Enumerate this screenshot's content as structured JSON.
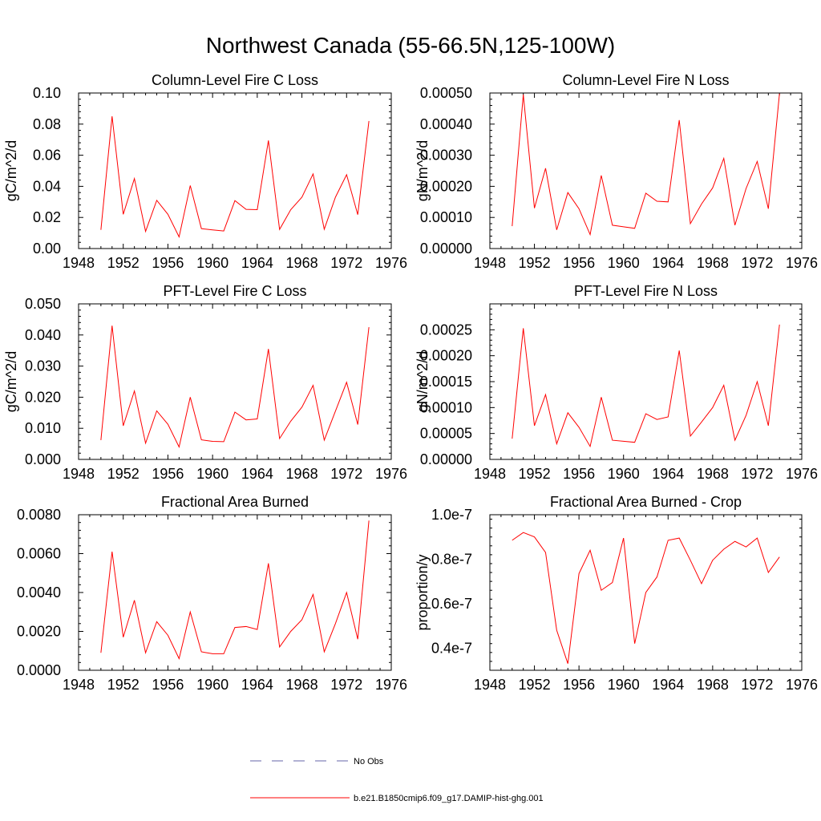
{
  "title": "Northwest Canada (55-66.5N,125-100W)",
  "chart_data": [
    {
      "type": "line",
      "title": "Column-Level Fire C Loss",
      "ylabel": "gC/m^2/d",
      "xlim": [
        1948,
        1976
      ],
      "ylim": [
        0,
        0.1
      ],
      "xticks": [
        1948,
        1952,
        1956,
        1960,
        1964,
        1968,
        1972,
        1976
      ],
      "yticks": [
        0,
        0.02,
        0.04,
        0.06,
        0.08,
        0.1
      ],
      "yticklabels": [
        "0.00",
        "0.02",
        "0.04",
        "0.06",
        "0.08",
        "0.10"
      ],
      "x": [
        1950,
        1951,
        1952,
        1953,
        1954,
        1955,
        1956,
        1957,
        1958,
        1959,
        1960,
        1961,
        1962,
        1963,
        1964,
        1965,
        1966,
        1967,
        1968,
        1969,
        1970,
        1971,
        1972,
        1973,
        1974
      ],
      "series": [
        {
          "name": "b.e21.B1850cmip6.f09_g17.DAMIP-hist-ghg.001",
          "values": [
            0.012,
            0.085,
            0.022,
            0.045,
            0.011,
            0.031,
            0.022,
            0.0075,
            0.0405,
            0.0128,
            0.012,
            0.0113,
            0.0308,
            0.0252,
            0.025,
            0.0695,
            0.0123,
            0.025,
            0.033,
            0.048,
            0.0124,
            0.033,
            0.0475,
            0.0218,
            0.082
          ]
        }
      ]
    },
    {
      "type": "line",
      "title": "Column-Level Fire N Loss",
      "ylabel": "gN/m^2/d",
      "xlim": [
        1948,
        1976
      ],
      "ylim": [
        0,
        0.0005
      ],
      "xticks": [
        1948,
        1952,
        1956,
        1960,
        1964,
        1968,
        1972,
        1976
      ],
      "yticks": [
        0,
        0.0001,
        0.0002,
        0.0003,
        0.0004,
        0.0005
      ],
      "yticklabels": [
        "0.00000",
        "0.00010",
        "0.00020",
        "0.00030",
        "0.00040",
        "0.00050"
      ],
      "x": [
        1950,
        1951,
        1952,
        1953,
        1954,
        1955,
        1956,
        1957,
        1958,
        1959,
        1960,
        1961,
        1962,
        1963,
        1964,
        1965,
        1966,
        1967,
        1968,
        1969,
        1970,
        1971,
        1972,
        1973,
        1974
      ],
      "series": [
        {
          "name": "b.e21.B1850cmip6.f09_g17.DAMIP-hist-ghg.001",
          "values": [
            7.2e-05,
            0.000495,
            0.00013,
            0.000258,
            6e-05,
            0.00018,
            0.000128,
            4.5e-05,
            0.000235,
            7.5e-05,
            7e-05,
            6.5e-05,
            0.000178,
            0.000152,
            0.00015,
            0.000413,
            8e-05,
            0.000143,
            0.000195,
            0.00029,
            7.5e-05,
            0.000193,
            0.00028,
            0.000128,
            0.000498
          ]
        }
      ]
    },
    {
      "type": "line",
      "title": "PFT-Level Fire C Loss",
      "ylabel": "gC/m^2/d",
      "xlim": [
        1948,
        1976
      ],
      "ylim": [
        0,
        0.05
      ],
      "xticks": [
        1948,
        1952,
        1956,
        1960,
        1964,
        1968,
        1972,
        1976
      ],
      "yticks": [
        0,
        0.01,
        0.02,
        0.03,
        0.04,
        0.05
      ],
      "yticklabels": [
        "0.000",
        "0.010",
        "0.020",
        "0.030",
        "0.040",
        "0.050"
      ],
      "x": [
        1950,
        1951,
        1952,
        1953,
        1954,
        1955,
        1956,
        1957,
        1958,
        1959,
        1960,
        1961,
        1962,
        1963,
        1964,
        1965,
        1966,
        1967,
        1968,
        1969,
        1970,
        1971,
        1972,
        1973,
        1974
      ],
      "series": [
        {
          "name": "b.e21.B1850cmip6.f09_g17.DAMIP-hist-ghg.001",
          "values": [
            0.0062,
            0.043,
            0.0108,
            0.022,
            0.0052,
            0.0156,
            0.0113,
            0.004,
            0.02,
            0.0063,
            0.0058,
            0.0057,
            0.0152,
            0.0127,
            0.013,
            0.0355,
            0.0067,
            0.0123,
            0.0168,
            0.0238,
            0.0062,
            0.0155,
            0.0248,
            0.0112,
            0.0425
          ]
        }
      ]
    },
    {
      "type": "line",
      "title": "PFT-Level Fire N Loss",
      "ylabel": "gN/m^2/d",
      "xlim": [
        1948,
        1976
      ],
      "ylim": [
        0,
        0.0003
      ],
      "xticks": [
        1948,
        1952,
        1956,
        1960,
        1964,
        1968,
        1972,
        1976
      ],
      "yticks": [
        0,
        5e-05,
        0.0001,
        0.00015,
        0.0002,
        0.00025
      ],
      "yticklabels": [
        "0.00000",
        "0.00005",
        "0.00010",
        "0.00015",
        "0.00020",
        "0.00025"
      ],
      "x": [
        1950,
        1951,
        1952,
        1953,
        1954,
        1955,
        1956,
        1957,
        1958,
        1959,
        1960,
        1961,
        1962,
        1963,
        1964,
        1965,
        1966,
        1967,
        1968,
        1969,
        1970,
        1971,
        1972,
        1973,
        1974
      ],
      "series": [
        {
          "name": "b.e21.B1850cmip6.f09_g17.DAMIP-hist-ghg.001",
          "values": [
            4e-05,
            0.000253,
            6.5e-05,
            0.000125,
            3e-05,
            9e-05,
            6.2e-05,
            2.5e-05,
            0.00012,
            3.7e-05,
            3.5e-05,
            3.3e-05,
            8.8e-05,
            7.7e-05,
            8.2e-05,
            0.00021,
            4.5e-05,
            7.2e-05,
            0.0001,
            0.000143,
            3.7e-05,
            8.5e-05,
            0.00015,
            6.5e-05,
            0.00026
          ]
        }
      ]
    },
    {
      "type": "line",
      "title": "Fractional Area Burned",
      "ylabel": "",
      "xlim": [
        1948,
        1976
      ],
      "ylim": [
        0,
        0.008
      ],
      "xticks": [
        1948,
        1952,
        1956,
        1960,
        1964,
        1968,
        1972,
        1976
      ],
      "yticks": [
        0,
        0.002,
        0.004,
        0.006,
        0.008
      ],
      "yticklabels": [
        "0.0000",
        "0.0020",
        "0.0040",
        "0.0060",
        "0.0080"
      ],
      "x": [
        1950,
        1951,
        1952,
        1953,
        1954,
        1955,
        1956,
        1957,
        1958,
        1959,
        1960,
        1961,
        1962,
        1963,
        1964,
        1965,
        1966,
        1967,
        1968,
        1969,
        1970,
        1971,
        1972,
        1973,
        1974
      ],
      "series": [
        {
          "name": "b.e21.B1850cmip6.f09_g17.DAMIP-hist-ghg.001",
          "values": [
            0.0009,
            0.0061,
            0.0017,
            0.0036,
            0.0009,
            0.0025,
            0.0018,
            0.0006,
            0.003,
            0.00095,
            0.00085,
            0.00085,
            0.0022,
            0.00225,
            0.0021,
            0.0055,
            0.0012,
            0.002,
            0.0026,
            0.0039,
            0.00095,
            0.0024,
            0.004,
            0.0016,
            0.0077
          ]
        }
      ]
    },
    {
      "type": "line",
      "title": "Fractional Area Burned - Crop",
      "ylabel": "proportion/y",
      "xlim": [
        1948,
        1976
      ],
      "ylim": [
        3e-08,
        1e-07
      ],
      "xticks": [
        1948,
        1952,
        1956,
        1960,
        1964,
        1968,
        1972,
        1976
      ],
      "yticks": [
        4e-08,
        6e-08,
        8e-08,
        1e-07
      ],
      "yticklabels": [
        "0.4e-7",
        "0.6e-7",
        "0.8e-7",
        "1.0e-7"
      ],
      "x": [
        1950,
        1951,
        1952,
        1953,
        1954,
        1955,
        1956,
        1957,
        1958,
        1959,
        1960,
        1961,
        1962,
        1963,
        1964,
        1965,
        1966,
        1967,
        1968,
        1969,
        1970,
        1971,
        1972,
        1973,
        1974
      ],
      "series": [
        {
          "name": "b.e21.B1850cmip6.f09_g17.DAMIP-hist-ghg.001",
          "values": [
            8.85e-08,
            9.2e-08,
            9e-08,
            8.3e-08,
            4.8e-08,
            3.3e-08,
            7.35e-08,
            8.4e-08,
            6.6e-08,
            6.95e-08,
            8.95e-08,
            4.2e-08,
            6.5e-08,
            7.2e-08,
            8.85e-08,
            8.95e-08,
            7.95e-08,
            6.9e-08,
            7.95e-08,
            8.45e-08,
            8.8e-08,
            8.55e-08,
            8.95e-08,
            7.4e-08,
            8.1e-08
          ]
        }
      ]
    }
  ],
  "legend": [
    {
      "label": "No Obs",
      "color": "#6666aa",
      "style": "dashed"
    },
    {
      "label": "b.e21.B1850cmip6.f09_g17.DAMIP-hist-ghg.001",
      "color": "#ff0000",
      "style": "solid"
    }
  ],
  "colors": {
    "line": "#ff0000",
    "axis": "#000000"
  }
}
